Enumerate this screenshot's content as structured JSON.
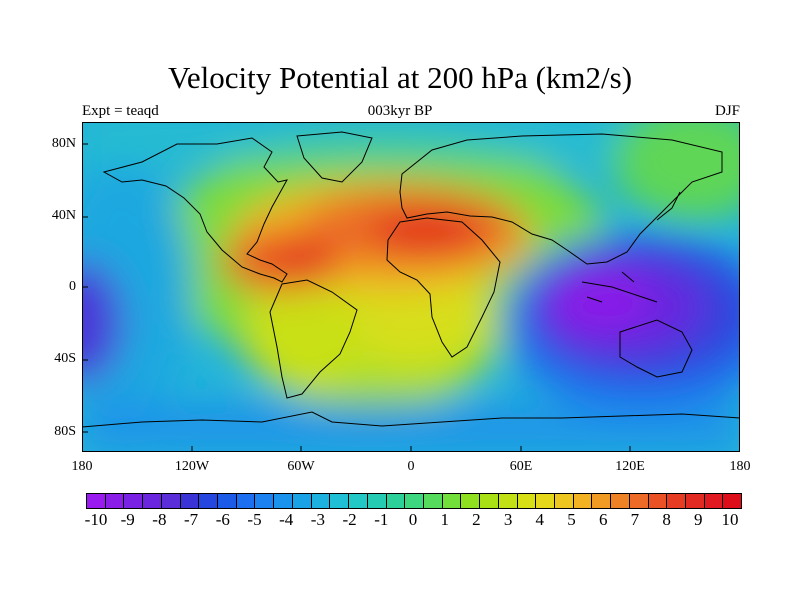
{
  "title": "Velocity Potential at 200 hPa (km2/s)",
  "left_label": "Expt = teaqd",
  "center_label": "003kyr BP",
  "right_label": "DJF",
  "lat_ticks": [
    "80N",
    "40N",
    "0",
    "40S",
    "80S"
  ],
  "lon_ticks": [
    "180",
    "120W",
    "60W",
    "0",
    "60E",
    "120E",
    "180"
  ],
  "colorbar_labels": [
    "-10",
    "-9",
    "-8",
    "-7",
    "-6",
    "-5",
    "-4",
    "-3",
    "-2",
    "-1",
    "0",
    "1",
    "2",
    "3",
    "4",
    "5",
    "6",
    "7",
    "8",
    "9",
    "10"
  ],
  "colorbar_colors": [
    "#9a1bf0",
    "#8a1ee8",
    "#7a22e3",
    "#6a26de",
    "#5a2ed9",
    "#3a34d6",
    "#2646e0",
    "#1c5be8",
    "#1c6ff0",
    "#1c82f2",
    "#1a93ec",
    "#19a2e5",
    "#1cb1de",
    "#1fbfd5",
    "#22c8c5",
    "#25ccb3",
    "#2cd19a",
    "#3cd77e",
    "#55dc5c",
    "#72df3b",
    "#8fe01e",
    "#a9e015",
    "#c2e114",
    "#d6e015",
    "#e5d81b",
    "#eec620",
    "#f2b222",
    "#f29b24",
    "#f08226",
    "#ed6a27",
    "#ea5226",
    "#e63c24",
    "#e32a22",
    "#e01a20",
    "#dd0d1a"
  ],
  "ocean_color": "#1ca8e4",
  "coast_color": "#000000"
}
